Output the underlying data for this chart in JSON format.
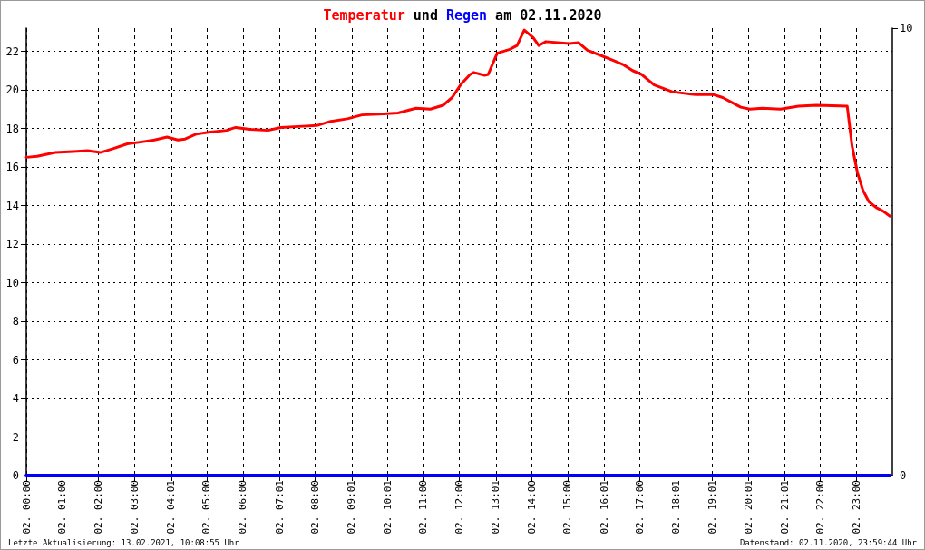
{
  "chart_data": {
    "type": "line",
    "title": "Temperatur und Regen am 02.11.2020",
    "annotations": [
      "Letzte Aktualisierung: 13.02.2021, 10:08:55 Uhr",
      "Datenstand: 02.11.2020, 23:59:44 Uhr"
    ],
    "xlim": [
      "2020-11-02T00:00",
      "2020-11-03T00:00"
    ],
    "xticks": [
      {
        "value": "2020-11-02T00:00",
        "label": "02. 00:00"
      },
      {
        "value": "2020-11-02T01:00",
        "label": "02. 01:00"
      },
      {
        "value": "2020-11-02T02:00",
        "label": "02. 02:00"
      },
      {
        "value": "2020-11-02T03:00",
        "label": "02. 03:00"
      },
      {
        "value": "2020-11-02T04:01",
        "label": "02. 04:01"
      },
      {
        "value": "2020-11-02T05:00",
        "label": "02. 05:00"
      },
      {
        "value": "2020-11-02T06:00",
        "label": "02. 06:00"
      },
      {
        "value": "2020-11-02T07:01",
        "label": "02. 07:01"
      },
      {
        "value": "2020-11-02T08:00",
        "label": "02. 08:00"
      },
      {
        "value": "2020-11-02T09:01",
        "label": "02. 09:01"
      },
      {
        "value": "2020-11-02T10:01",
        "label": "02. 10:01"
      },
      {
        "value": "2020-11-02T11:00",
        "label": "02. 11:00"
      },
      {
        "value": "2020-11-02T12:00",
        "label": "02. 12:00"
      },
      {
        "value": "2020-11-02T13:01",
        "label": "02. 13:01"
      },
      {
        "value": "2020-11-02T14:00",
        "label": "02. 14:00"
      },
      {
        "value": "2020-11-02T15:00",
        "label": "02. 15:00"
      },
      {
        "value": "2020-11-02T16:01",
        "label": "02. 16:01"
      },
      {
        "value": "2020-11-02T17:00",
        "label": "02. 17:00"
      },
      {
        "value": "2020-11-02T18:01",
        "label": "02. 18:01"
      },
      {
        "value": "2020-11-02T19:01",
        "label": "02. 19:01"
      },
      {
        "value": "2020-11-02T20:01",
        "label": "02. 20:01"
      },
      {
        "value": "2020-11-02T21:01",
        "label": "02. 21:01"
      },
      {
        "value": "2020-11-02T22:00",
        "label": "02. 22:00"
      },
      {
        "value": "2020-11-02T23:00",
        "label": "02. 23:00"
      }
    ],
    "ylim": [
      0,
      23.2
    ],
    "yticks": [
      0,
      2,
      4,
      6,
      8,
      10,
      12,
      14,
      16,
      18,
      20,
      22
    ],
    "y2lim": [
      0,
      10
    ],
    "y2ticks": [
      0,
      10
    ],
    "grid": true,
    "marker": "none",
    "series": [
      {
        "color": "#ff0000",
        "x": [
          "2020-11-02T00:00",
          "2020-11-02T00:18",
          "2020-11-02T00:48",
          "2020-11-02T01:18",
          "2020-11-02T01:42",
          "2020-11-02T02:03",
          "2020-11-02T02:24",
          "2020-11-02T02:48",
          "2020-11-02T03:12",
          "2020-11-02T03:33",
          "2020-11-02T03:54",
          "2020-11-02T04:12",
          "2020-11-02T04:24",
          "2020-11-02T04:42",
          "2020-11-02T05:03",
          "2020-11-02T05:33",
          "2020-11-02T05:48",
          "2020-11-02T06:12",
          "2020-11-02T06:42",
          "2020-11-02T07:03",
          "2020-11-02T07:33",
          "2020-11-02T08:03",
          "2020-11-02T08:24",
          "2020-11-02T08:54",
          "2020-11-02T09:18",
          "2020-11-02T09:54",
          "2020-11-02T10:18",
          "2020-11-02T10:48",
          "2020-11-02T11:12",
          "2020-11-02T11:33",
          "2020-11-02T11:48",
          "2020-11-02T12:03",
          "2020-11-02T12:18",
          "2020-11-02T12:24",
          "2020-11-02T12:42",
          "2020-11-02T12:48",
          "2020-11-02T13:03",
          "2020-11-02T13:24",
          "2020-11-02T13:36",
          "2020-11-02T13:48",
          "2020-11-02T14:03",
          "2020-11-02T14:12",
          "2020-11-02T14:24",
          "2020-11-02T15:03",
          "2020-11-02T15:18",
          "2020-11-02T15:33",
          "2020-11-02T15:54",
          "2020-11-02T16:18",
          "2020-11-02T16:33",
          "2020-11-02T16:48",
          "2020-11-02T17:03",
          "2020-11-02T17:24",
          "2020-11-02T17:54",
          "2020-11-02T18:33",
          "2020-11-02T19:03",
          "2020-11-02T19:18",
          "2020-11-02T19:33",
          "2020-11-02T19:48",
          "2020-11-02T20:03",
          "2020-11-02T20:24",
          "2020-11-02T20:54",
          "2020-11-02T21:24",
          "2020-11-02T21:54",
          "2020-11-02T22:45",
          "2020-11-02T22:53",
          "2020-11-02T23:02",
          "2020-11-02T23:11",
          "2020-11-02T23:21",
          "2020-11-02T23:33",
          "2020-11-02T23:45",
          "2020-11-02T23:56"
        ],
        "values": [
          16.5,
          16.55,
          16.75,
          16.8,
          16.85,
          16.75,
          16.95,
          17.2,
          17.3,
          17.4,
          17.55,
          17.4,
          17.45,
          17.7,
          17.8,
          17.9,
          18.05,
          17.95,
          17.9,
          18.05,
          18.1,
          18.15,
          18.35,
          18.5,
          18.7,
          18.75,
          18.8,
          19.05,
          19.0,
          19.2,
          19.6,
          20.3,
          20.8,
          20.9,
          20.75,
          20.8,
          21.9,
          22.1,
          22.3,
          23.1,
          22.7,
          22.3,
          22.5,
          22.4,
          22.45,
          22.05,
          21.8,
          21.5,
          21.3,
          21.0,
          20.8,
          20.25,
          19.9,
          19.75,
          19.75,
          19.6,
          19.35,
          19.1,
          19.0,
          19.05,
          19.0,
          19.15,
          19.2,
          19.15,
          17.1,
          15.7,
          14.8,
          14.2,
          13.9,
          13.7,
          13.45
        ]
      },
      {
        "color": "#0000ff",
        "axis": "y2",
        "x": [
          "2020-11-02T00:00",
          "2020-11-02T23:56"
        ],
        "values": [
          0,
          0
        ]
      }
    ]
  }
}
